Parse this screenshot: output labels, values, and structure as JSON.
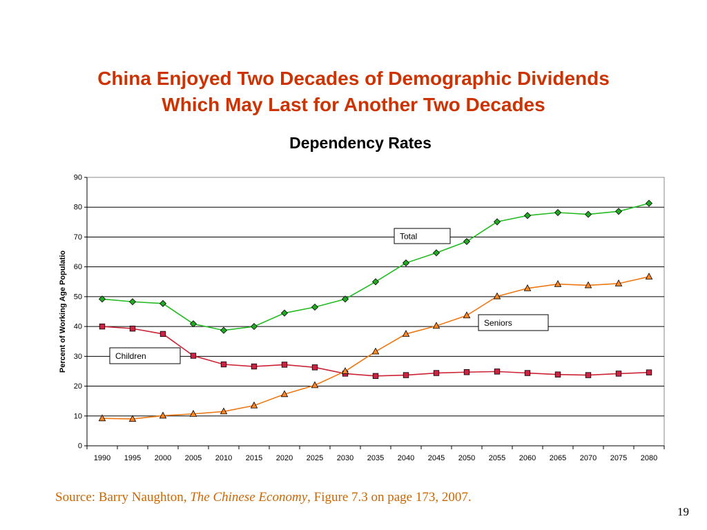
{
  "slide": {
    "title_line1": "China Enjoyed Two Decades of Demographic Dividends",
    "title_line2": "Which May Last for Another Two Decades",
    "page_number": "19"
  },
  "source": {
    "prefix": "Source: Barry Naughton, ",
    "book": "The Chinese Economy",
    "suffix": ", Figure 7.3 on page 173, 2007."
  },
  "colors": {
    "title": "#cc3300",
    "source": "#cc6600",
    "total_line": "#22bb22",
    "total_marker": "#22aa22",
    "children_line": "#cc2233",
    "children_marker": "#cc2244",
    "seniors_line": "#ee7711",
    "seniors_marker": "#ff8822"
  },
  "chart_data": {
    "type": "line",
    "title": "Dependency Rates",
    "xlabel": "",
    "ylabel": "Percent of Working Age Populatio",
    "x": [
      "1990",
      "1995",
      "2000",
      "2005",
      "2010",
      "2015",
      "2020",
      "2025",
      "2030",
      "2035",
      "2040",
      "2045",
      "2050",
      "2055",
      "2060",
      "2065",
      "2070",
      "2075",
      "2080"
    ],
    "ylim": [
      0,
      90
    ],
    "yticks": [
      0,
      10,
      20,
      30,
      40,
      50,
      60,
      70,
      80,
      90
    ],
    "grid": true,
    "series": [
      {
        "name": "Total",
        "marker": "diamond",
        "values": [
          49.2,
          48.3,
          47.7,
          40.9,
          38.7,
          40.0,
          44.5,
          46.5,
          49.2,
          55.0,
          61.3,
          64.7,
          68.5,
          75.1,
          77.2,
          78.2,
          77.6,
          78.6,
          81.3
        ]
      },
      {
        "name": "Children",
        "marker": "square",
        "values": [
          40.0,
          39.3,
          37.5,
          30.2,
          27.3,
          26.6,
          27.2,
          26.3,
          24.2,
          23.4,
          23.7,
          24.4,
          24.7,
          24.9,
          24.4,
          23.9,
          23.7,
          24.2,
          24.6
        ]
      },
      {
        "name": "Seniors",
        "marker": "triangle",
        "values": [
          9.2,
          9.0,
          10.1,
          10.7,
          11.5,
          13.5,
          17.3,
          20.3,
          25.0,
          31.6,
          37.5,
          40.2,
          43.7,
          50.1,
          52.8,
          54.2,
          53.8,
          54.4,
          56.7
        ]
      }
    ]
  }
}
